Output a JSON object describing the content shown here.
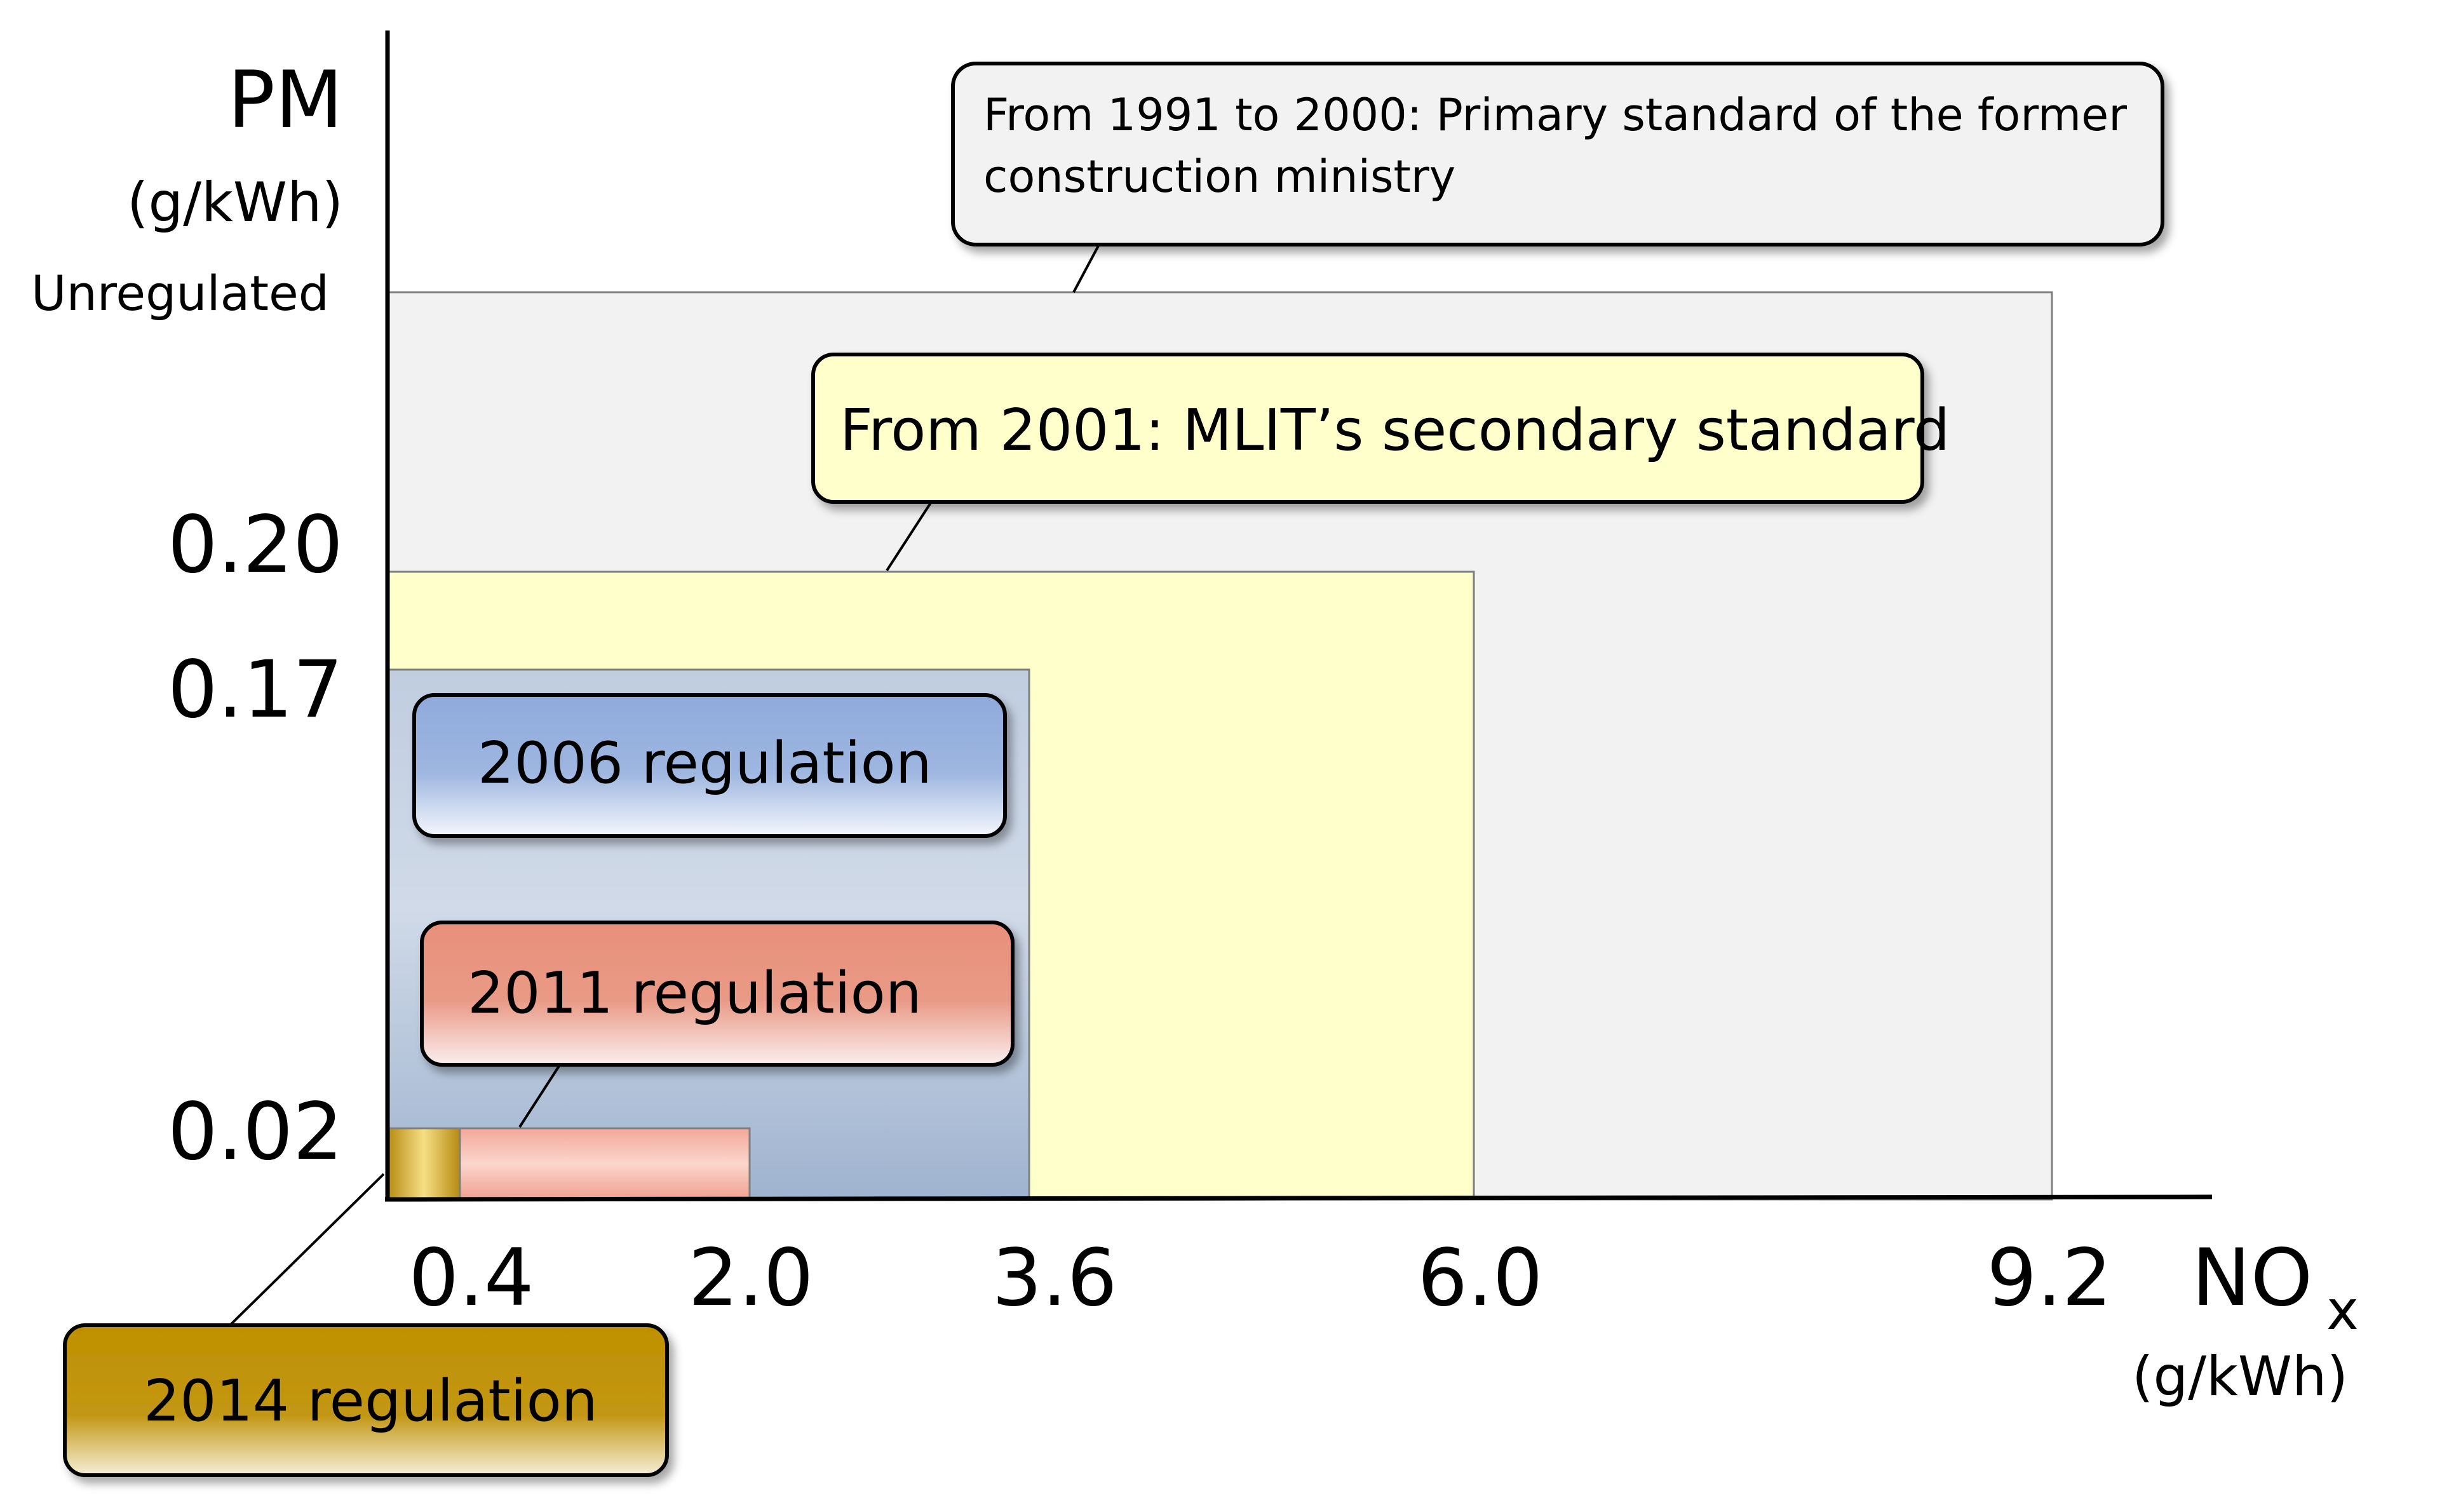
{
  "axes": {
    "y_title": "PM",
    "y_unit": "(g/kWh)",
    "y_unregulated": "Unregulated",
    "y_ticks": [
      "0.20",
      "0.17",
      "0.02"
    ],
    "x_ticks": [
      "0.4",
      "2.0",
      "3.6",
      "6.0",
      "9.2"
    ],
    "x_title_main": "NO",
    "x_title_sub": "x",
    "x_unit": "(g/kWh)"
  },
  "regions": {
    "primary": {
      "line1": "From 1991 to 2000: Primary standard of the former",
      "line2": "construction ministry",
      "nox_limit": 9.2,
      "pm_limit": "Unregulated"
    },
    "secondary": {
      "label": "From 2001: MLIT’s secondary standard",
      "nox_limit": 6.0,
      "pm_limit": 0.2
    },
    "reg2006": {
      "label": "2006 regulation",
      "nox_limit": 3.6,
      "pm_limit": 0.17
    },
    "reg2011": {
      "label": "2011 regulation",
      "nox_limit": 2.0,
      "pm_limit": 0.02
    },
    "reg2014": {
      "label": "2014 regulation",
      "nox_limit": 0.4,
      "pm_limit": 0.02
    }
  },
  "colors": {
    "primary_fill": "#f2f2f2",
    "secondary_fill": "#ffffcc",
    "reg2006_fill": "#a8b9d2",
    "reg2011_fill": "#f4b7aa",
    "reg2014_fill": "#d4a520",
    "callout_primary": "#f2f2f2",
    "callout_secondary": "#ffffcc",
    "callout_2006": "#8faadc",
    "callout_2011": "#e88d76",
    "callout_2014": "#bf9000"
  }
}
